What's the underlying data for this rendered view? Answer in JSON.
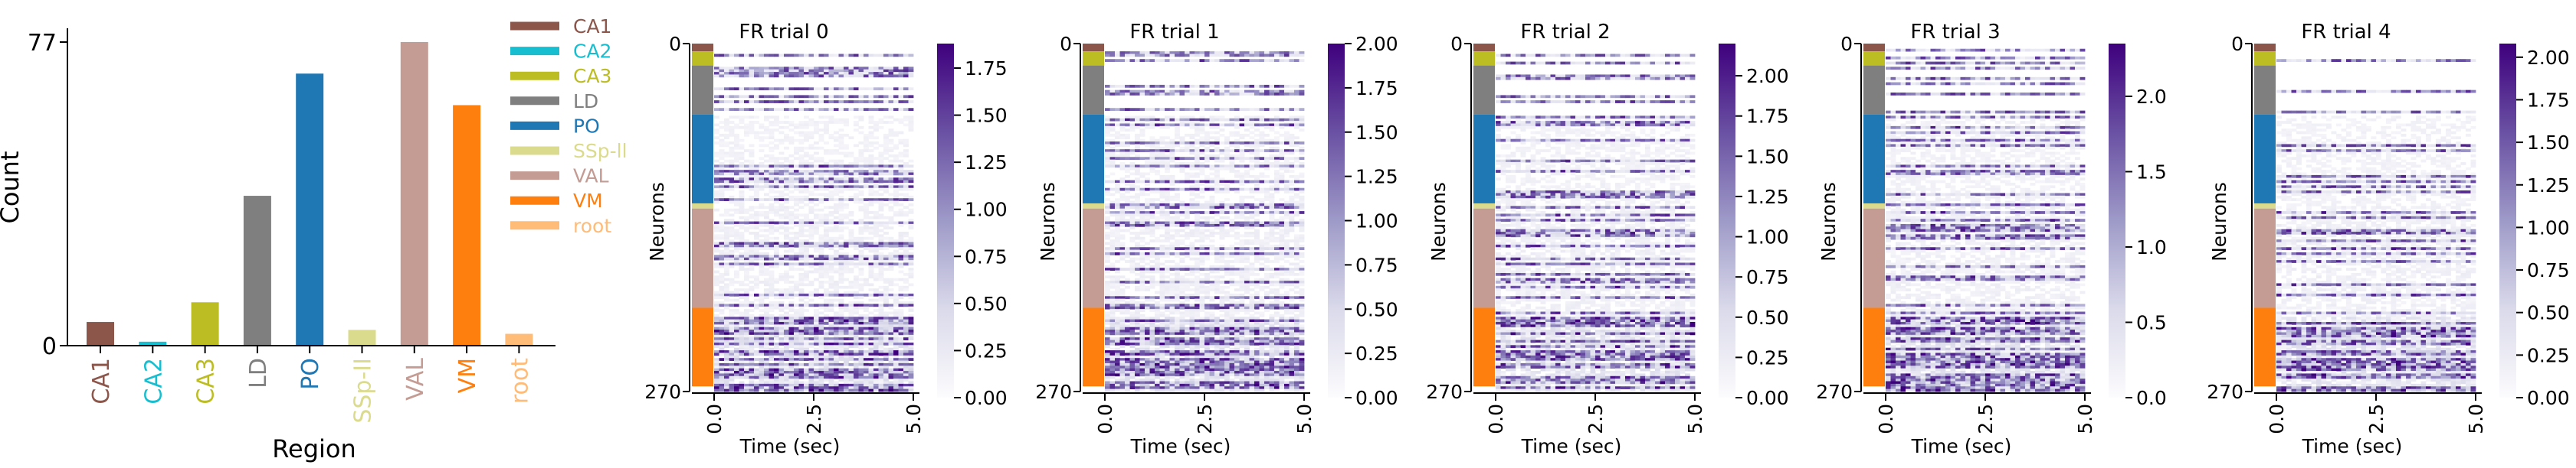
{
  "chart_data": [
    {
      "type": "bar",
      "ylabel": "Count",
      "xlabel": "Region",
      "yticks": [
        0,
        77
      ],
      "ylim": [
        0,
        80
      ],
      "categories": [
        "CA1",
        "CA2",
        "CA3",
        "LD",
        "PO",
        "SSp-II",
        "VAL",
        "VM",
        "root"
      ],
      "values": [
        6,
        1,
        11,
        38,
        69,
        4,
        77,
        61,
        3
      ],
      "colors": [
        "#8c564b",
        "#17becf",
        "#bcbd22",
        "#7f7f7f",
        "#1f77b4",
        "#dbdb8d",
        "#c49c94",
        "#ff7f0e",
        "#ffbb78"
      ],
      "legend": {
        "placement": "right",
        "entries": [
          "CA1",
          "CA2",
          "CA3",
          "LD",
          "PO",
          "SSp-ll",
          "VAL",
          "VM",
          "root"
        ]
      }
    },
    {
      "type": "heatmap",
      "panels": [
        {
          "title": "FR trial 0",
          "cbar_ticks": [
            "0.00",
            "0.25",
            "0.50",
            "0.75",
            "1.00",
            "1.25",
            "1.50",
            "1.75"
          ],
          "cbar_max": 1.88
        },
        {
          "title": "FR trial 1",
          "cbar_ticks": [
            "0.00",
            "0.25",
            "0.50",
            "0.75",
            "1.00",
            "1.25",
            "1.50",
            "1.75",
            "2.00"
          ],
          "cbar_max": 2.0
        },
        {
          "title": "FR trial 2",
          "cbar_ticks": [
            "0.00",
            "0.25",
            "0.50",
            "0.75",
            "1.00",
            "1.25",
            "1.50",
            "1.75",
            "2.00"
          ],
          "cbar_max": 2.2
        },
        {
          "title": "FR trial 3",
          "cbar_ticks": [
            "0.0",
            "0.5",
            "1.0",
            "1.5",
            "2.0"
          ],
          "cbar_max": 2.35
        },
        {
          "title": "FR trial 4",
          "cbar_ticks": [
            "0.00",
            "0.25",
            "0.50",
            "0.75",
            "1.00",
            "1.25",
            "1.50",
            "1.75",
            "2.00"
          ],
          "cbar_max": 2.08
        }
      ],
      "ylabel": "Neurons",
      "xlabel": "Time (sec)",
      "yticks": [
        "0",
        "270"
      ],
      "ylim": [
        0,
        270
      ],
      "xticks": [
        "0.0",
        "2.5",
        "5.0"
      ],
      "xlim": [
        0,
        5.0
      ],
      "region_order": [
        "CA1",
        "CA3",
        "LD",
        "PO",
        "SSp-ll",
        "VAL",
        "VM"
      ],
      "region_counts": [
        6,
        11,
        38,
        69,
        4,
        77,
        61
      ],
      "region_colors": [
        "#8c564b",
        "#bcbd22",
        "#7f7f7f",
        "#1f77b4",
        "#dbdb8d",
        "#c49c94",
        "#ff7f0e"
      ],
      "colormap": "Purples"
    }
  ]
}
